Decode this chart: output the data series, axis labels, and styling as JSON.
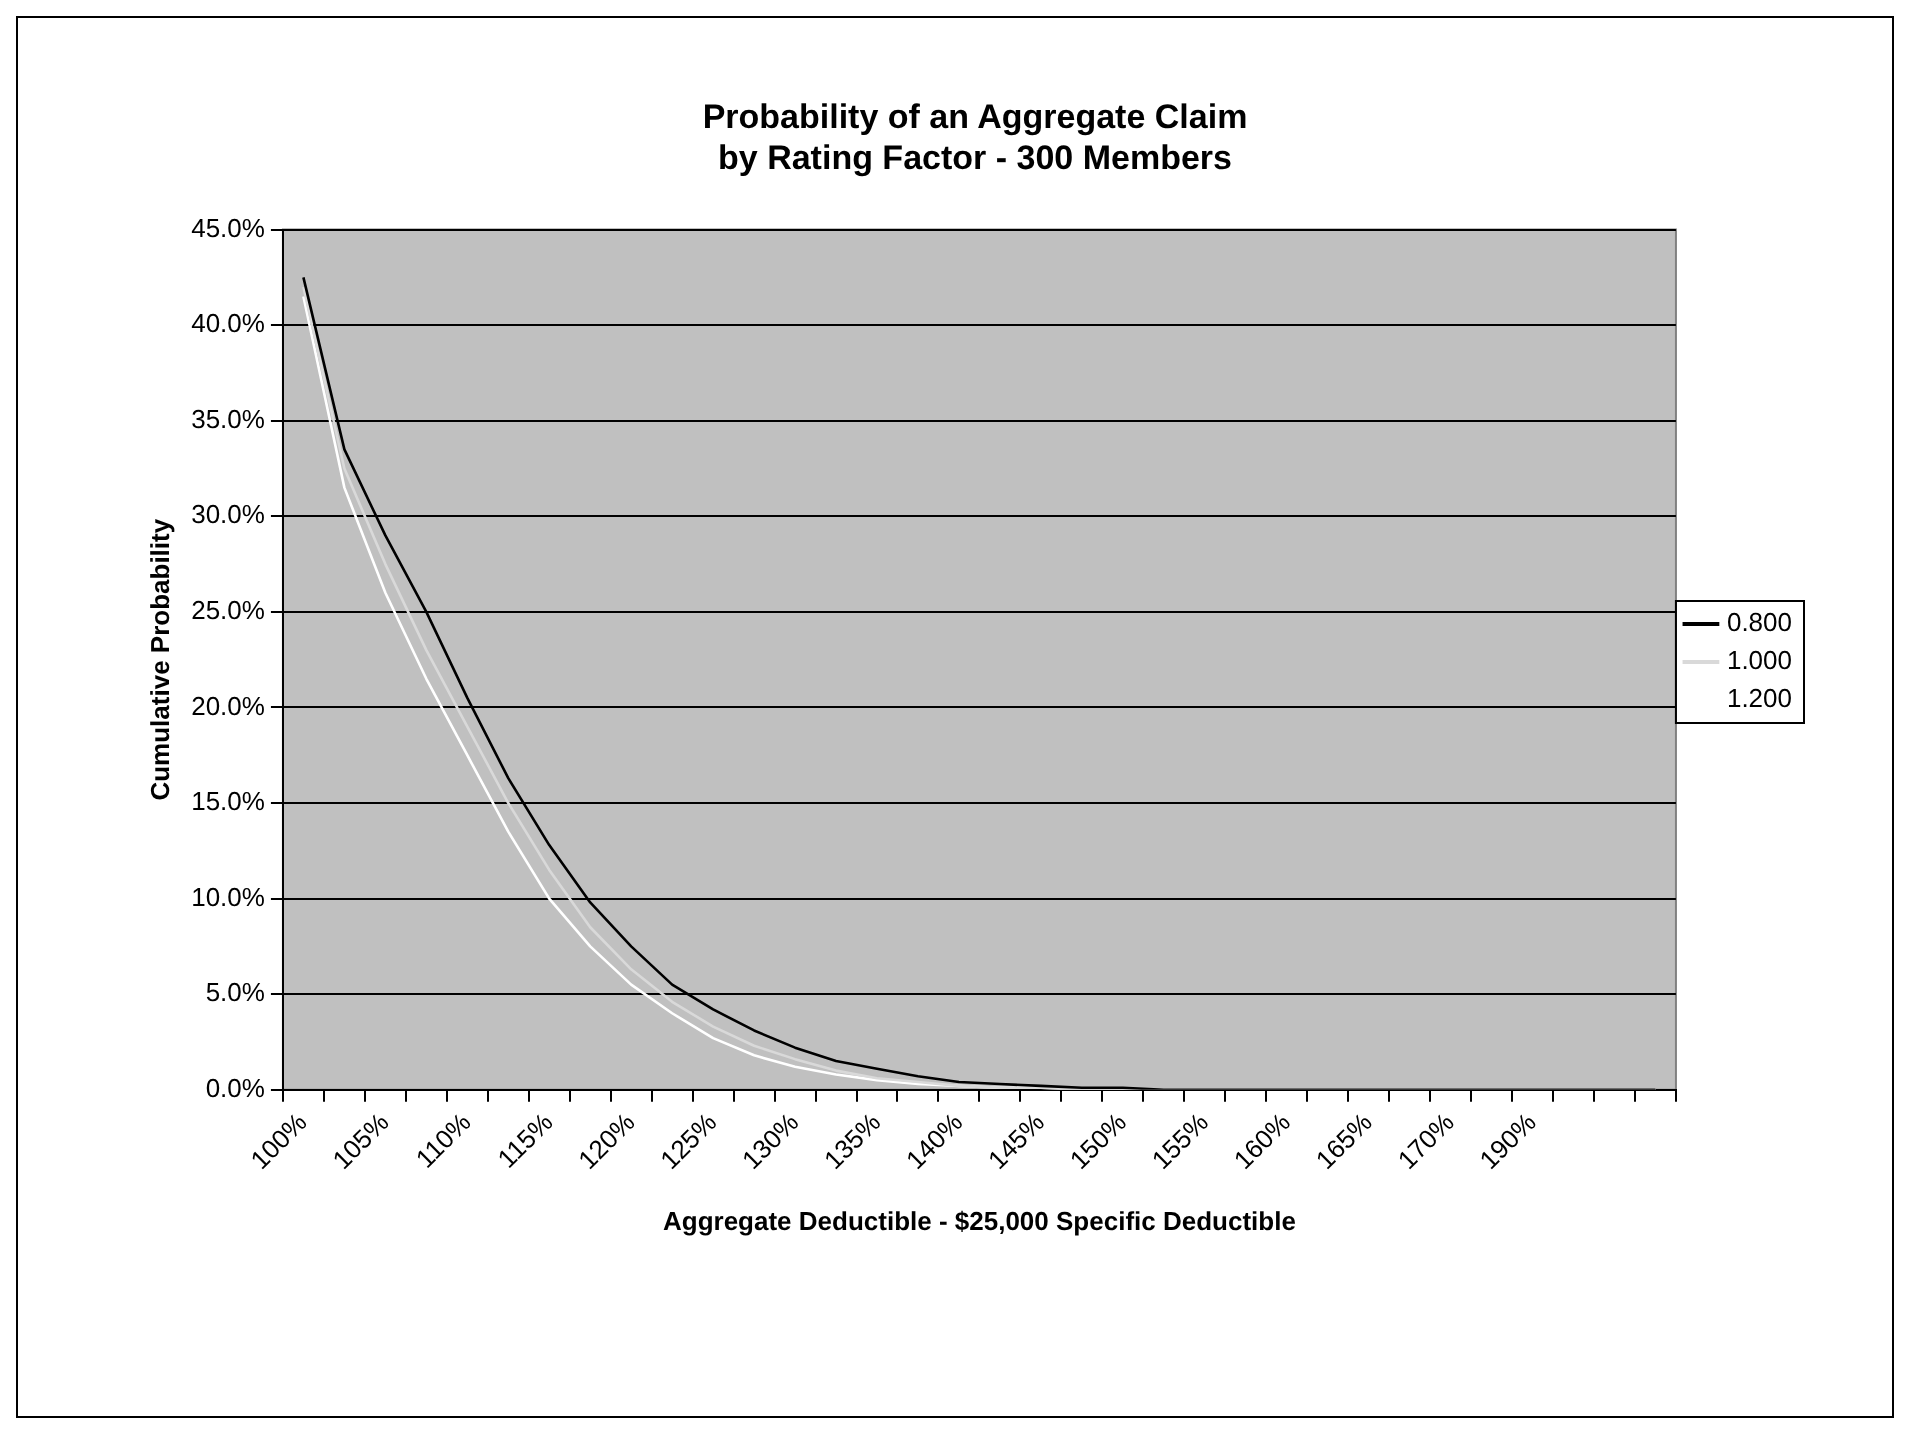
{
  "chart_data": {
    "type": "line",
    "title": "Probability of an Aggregate Claim\nby Rating Factor - 300 Members",
    "xlabel": "Aggregate Deductible - $25,000 Specific Deductible",
    "ylabel": "Cumulative Probability",
    "categories": [
      "100%",
      null,
      "105%",
      null,
      "110%",
      null,
      "115%",
      null,
      "120%",
      null,
      "125%",
      null,
      "130%",
      null,
      "135%",
      null,
      "140%",
      null,
      "145%",
      null,
      "150%",
      null,
      "155%",
      null,
      "160%",
      null,
      "165%",
      null,
      "170%",
      null,
      "190%",
      null,
      null,
      null
    ],
    "series": [
      {
        "name": "0.800",
        "color": "#000000",
        "values": [
          42.5,
          33.5,
          29,
          25,
          20.5,
          16.3,
          12.8,
          9.8,
          7.5,
          5.5,
          4.2,
          3.1,
          2.2,
          1.5,
          1.1,
          0.7,
          0.4,
          0.3,
          0.2,
          0.1,
          0.1,
          0,
          0,
          0,
          0,
          0,
          0,
          0,
          0,
          0,
          0,
          0,
          0,
          0
        ]
      },
      {
        "name": "1.000",
        "color": "#d9d9d9",
        "values": [
          42,
          32.5,
          27.5,
          23,
          19,
          15,
          11.5,
          8.5,
          6.3,
          4.6,
          3.3,
          2.3,
          1.6,
          1.0,
          0.6,
          0.4,
          0.2,
          0.1,
          0.1,
          0,
          0,
          0,
          0,
          0,
          0,
          0,
          0,
          0,
          0,
          0,
          0,
          0,
          0,
          0
        ]
      },
      {
        "name": "1.200",
        "color": "#ffffff",
        "values": [
          41.5,
          31.5,
          26,
          21.5,
          17.5,
          13.5,
          10,
          7.5,
          5.5,
          4,
          2.7,
          1.8,
          1.2,
          0.8,
          0.5,
          0.3,
          0.2,
          0.1,
          0.1,
          0,
          0,
          0,
          0,
          0,
          0,
          0,
          0,
          0,
          0,
          0,
          0,
          0,
          0,
          0
        ]
      }
    ],
    "ylim": [
      0,
      45
    ],
    "yticks": [
      {
        "value": 0,
        "label": "0.0%"
      },
      {
        "value": 5,
        "label": "5.0%"
      },
      {
        "value": 10,
        "label": "10.0%"
      },
      {
        "value": 15,
        "label": "15.0%"
      },
      {
        "value": 20,
        "label": "20.0%"
      },
      {
        "value": 25,
        "label": "25.0%"
      },
      {
        "value": 30,
        "label": "30.0%"
      },
      {
        "value": 35,
        "label": "35.0%"
      },
      {
        "value": 40,
        "label": "40.0%"
      },
      {
        "value": 45,
        "label": "45.0%"
      }
    ],
    "grid": "y",
    "legend": "right",
    "marker": "none",
    "line_style": "solid"
  }
}
